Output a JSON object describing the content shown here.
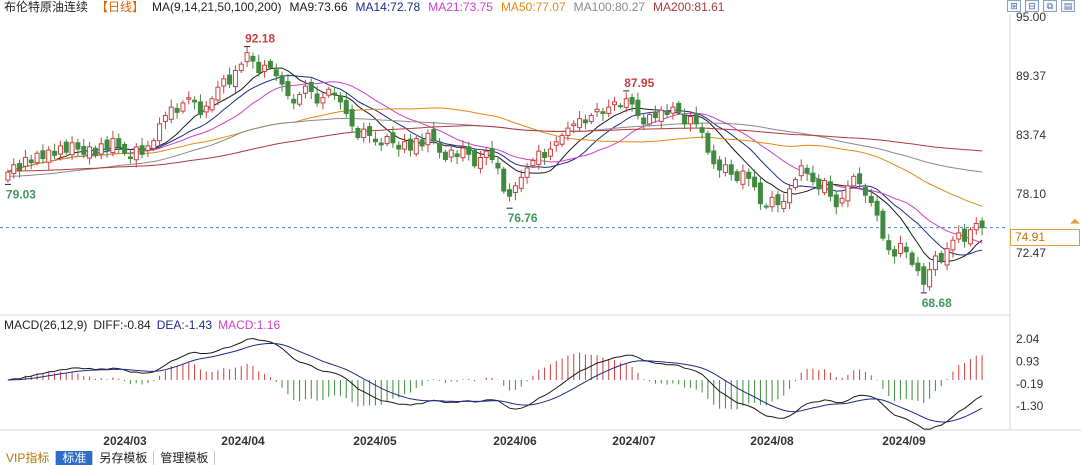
{
  "header": {
    "instrument": "布伦特原油连续",
    "period": "【日线】",
    "ma_params": "MA(9,14,21,50,100,200)",
    "ma9": "MA9:73.66",
    "ma14": "MA14:72.78",
    "ma21": "MA21:73.75",
    "ma50": "MA50:77.07",
    "ma100": "MA100:80.27",
    "ma200": "MA200:81.61"
  },
  "colors": {
    "up": "#c94040",
    "down": "#3f8a3f",
    "ma9": "#1a1a1a",
    "ma14": "#1c2a8a",
    "ma21": "#d040c8",
    "ma50": "#e08a10",
    "ma100": "#8a8a8a",
    "ma200": "#b03a3a",
    "dif": "#1a1a1a",
    "dea": "#1c2a8a"
  },
  "toolbar_icons": [
    "zoom-in-icon",
    "zoom-out-icon",
    "fit-icon",
    "settings-icon"
  ],
  "macd_header": {
    "params": "MACD(26,12,9)",
    "dif": "DIFF:-0.84",
    "dea": "DEA:-1.43",
    "macd": "MACD:1.16"
  },
  "bottom_tabs": [
    "VIP指标",
    "标准",
    "另存模板",
    "管理模板"
  ],
  "chart_data": [
    {
      "type": "candlestick",
      "title": "布伦特原油连续",
      "x_labels": [
        "2024/03",
        "2024/04",
        "2024/05",
        "2024/06",
        "2024/07",
        "2024/08",
        "2024/09"
      ],
      "ylim": [
        68.0,
        95.0
      ],
      "y_ticks": [
        "95.00",
        "89.37",
        "83.74",
        "78.10",
        "72.47"
      ],
      "current_price": "74.91",
      "annotations": [
        {
          "label": "92.18",
          "kind": "high",
          "month": "2024/04"
        },
        {
          "label": "79.03",
          "kind": "low",
          "month": "2024/02"
        },
        {
          "label": "76.76",
          "kind": "low",
          "month": "2024/06"
        },
        {
          "label": "87.95",
          "kind": "high",
          "month": "2024/07"
        },
        {
          "label": "68.68",
          "kind": "low",
          "month": "2024/09"
        }
      ],
      "closes": [
        80.2,
        80.9,
        80.4,
        81.6,
        81.1,
        82.0,
        81.5,
        82.3,
        81.8,
        82.7,
        82.1,
        83.0,
        82.4,
        81.9,
        82.6,
        81.8,
        82.9,
        82.3,
        83.4,
        82.6,
        82.0,
        81.5,
        82.6,
        81.9,
        82.7,
        83.2,
        84.8,
        85.6,
        86.4,
        85.9,
        86.8,
        87.3,
        86.9,
        85.7,
        86.5,
        87.2,
        88.3,
        89.1,
        88.6,
        89.9,
        90.5,
        91.6,
        90.8,
        89.7,
        90.4,
        90.2,
        89.4,
        88.6,
        87.5,
        86.8,
        87.6,
        88.4,
        87.9,
        86.8,
        87.3,
        88.1,
        87.6,
        86.9,
        85.8,
        84.6,
        83.5,
        84.3,
        83.7,
        83.1,
        82.8,
        83.6,
        83.0,
        82.4,
        83.1,
        82.3,
        83.4,
        82.7,
        83.9,
        83.2,
        82.1,
        81.4,
        82.3,
        81.7,
        82.5,
        81.9,
        80.8,
        81.6,
        82.2,
        81.4,
        80.6,
        78.4,
        77.9,
        78.9,
        79.7,
        80.6,
        81.3,
        82.2,
        81.6,
        82.4,
        83.1,
        83.7,
        84.4,
        84.8,
        85.3,
        84.9,
        85.6,
        86.2,
        85.8,
        86.4,
        86.9,
        86.5,
        87.2,
        86.7,
        85.6,
        84.8,
        85.7,
        85.4,
        86.1,
        85.7,
        86.4,
        85.9,
        84.8,
        85.5,
        84.8,
        84.0,
        82.1,
        81.0,
        80.4,
        80.9,
        80.0,
        79.4,
        80.3,
        79.6,
        78.8,
        77.2,
        76.9,
        77.8,
        77.1,
        77.4,
        78.6,
        79.5,
        80.8,
        80.1,
        79.3,
        78.6,
        79.4,
        77.9,
        76.9,
        77.7,
        78.9,
        79.8,
        79.1,
        78.0,
        77.3,
        76.1,
        73.9,
        72.8,
        72.2,
        73.4,
        72.6,
        71.4,
        70.8,
        69.5,
        70.9,
        72.2,
        71.7,
        72.9,
        73.7,
        74.4,
        73.6,
        74.7,
        75.3,
        74.9
      ]
    },
    {
      "type": "bar",
      "title": "MACD(26,12,9)",
      "x_labels": [
        "2024/03",
        "2024/04",
        "2024/05",
        "2024/06",
        "2024/07",
        "2024/08",
        "2024/09"
      ],
      "y_ticks": [
        "2.04",
        "0.93",
        "-0.19",
        "-1.30"
      ],
      "ylim": [
        -2.0,
        2.4
      ],
      "series": [
        {
          "name": "DIFF",
          "final": -0.84
        },
        {
          "name": "DEA",
          "final": -1.43
        },
        {
          "name": "MACD",
          "final": 1.16
        }
      ]
    }
  ]
}
